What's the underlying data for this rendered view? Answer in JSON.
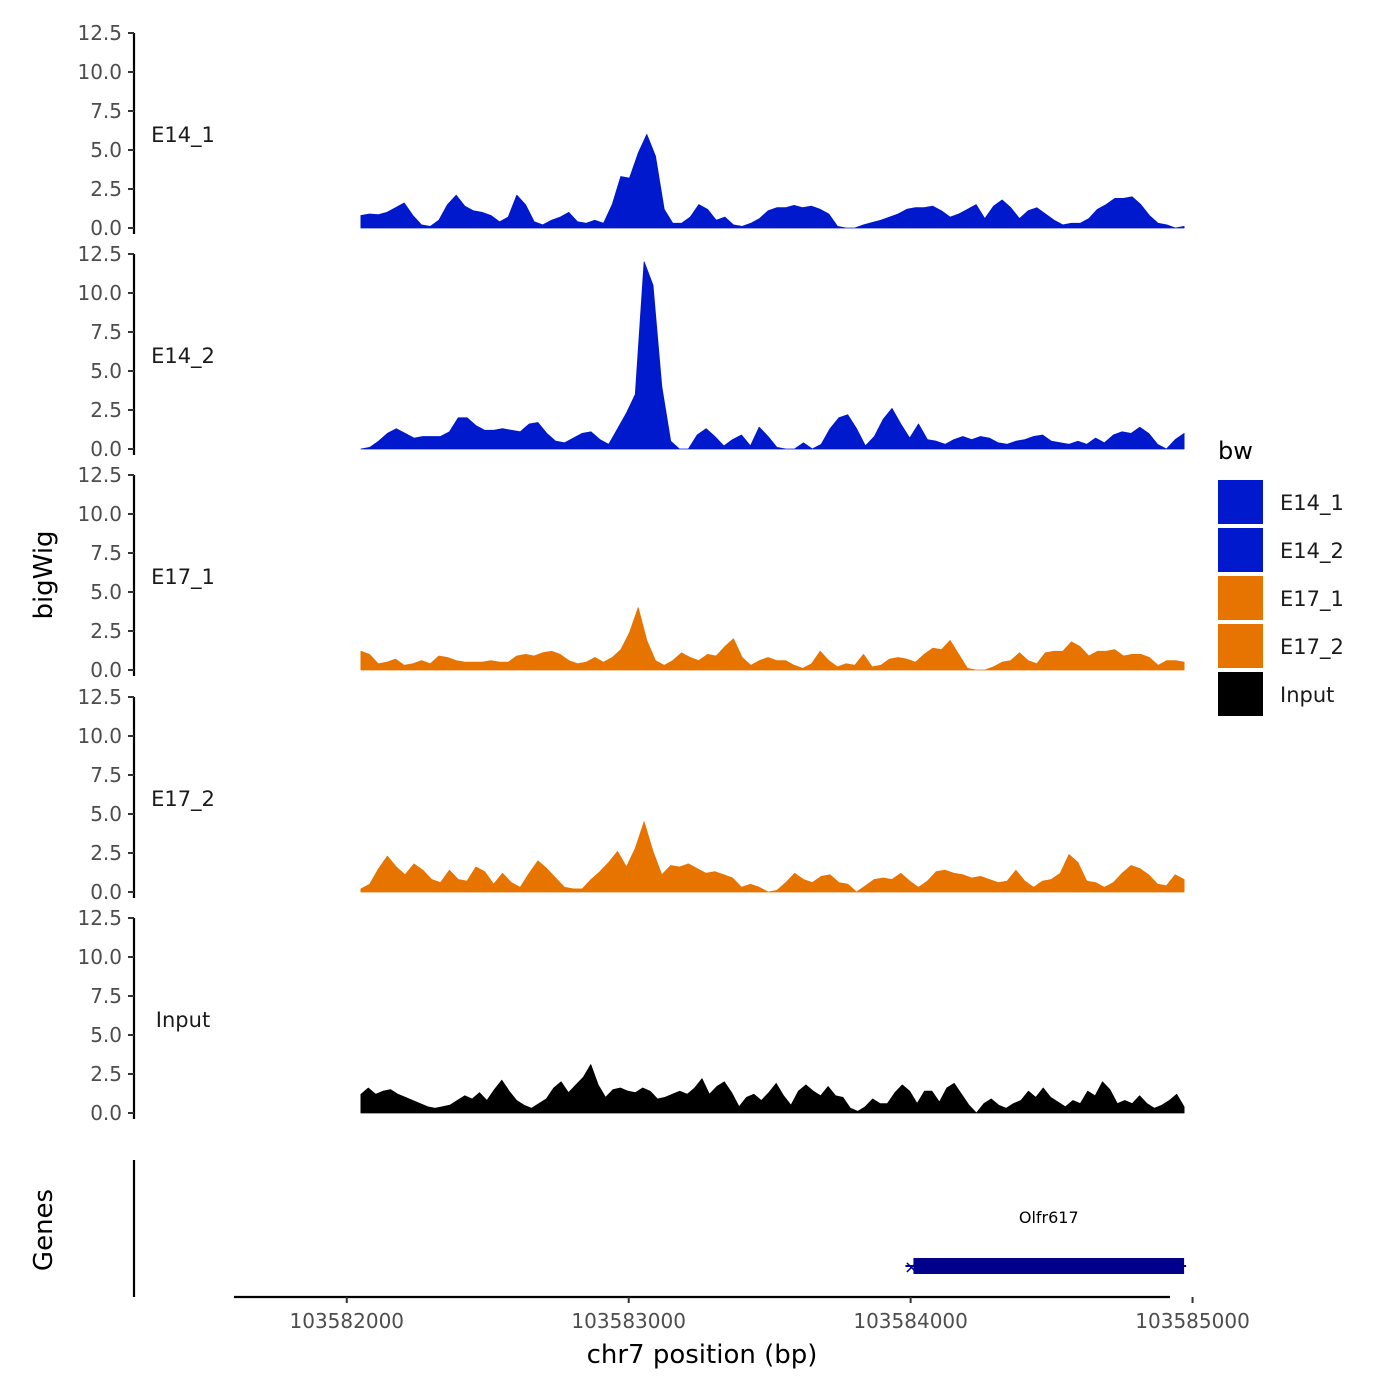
{
  "chart_data": {
    "type": "area",
    "ylabel": "bigWig",
    "xlabel": "chr7 position (bp)",
    "genes_label": "Genes",
    "x_range": [
      103582050,
      103584970
    ],
    "xlim": [
      103581600,
      103584920
    ],
    "x_ticks": [
      103582000,
      103583000,
      103584000,
      103585000
    ],
    "x_tick_labels": [
      "103582000",
      "103583000",
      "103584000",
      "103585000"
    ],
    "y_ticks": [
      0,
      2.5,
      5,
      7.5,
      10,
      12.5
    ],
    "y_tick_labels": [
      "0.0",
      "2.5",
      "5.0",
      "7.5",
      "10.0",
      "12.5"
    ],
    "ylim": [
      0,
      12.5
    ],
    "legend": {
      "title": "bw",
      "position": "right",
      "entries": [
        {
          "label": "E14_1",
          "color": "#0019cc"
        },
        {
          "label": "E14_2",
          "color": "#0019cc"
        },
        {
          "label": "E17_1",
          "color": "#e87400"
        },
        {
          "label": "E17_2",
          "color": "#e87400"
        },
        {
          "label": "Input",
          "color": "#000000"
        }
      ]
    },
    "series": [
      {
        "name": "E14_1",
        "color": "#0019cc",
        "values": [
          0.8,
          0.9,
          0.85,
          1.0,
          1.3,
          1.6,
          0.8,
          0.2,
          0.1,
          0.5,
          1.5,
          2.1,
          1.4,
          1.1,
          1.0,
          0.8,
          0.4,
          0.7,
          2.1,
          1.5,
          0.4,
          0.2,
          0.5,
          0.7,
          1.0,
          0.4,
          0.3,
          0.5,
          0.3,
          1.5,
          3.3,
          3.2,
          4.8,
          6.0,
          4.6,
          1.2,
          0.3,
          0.3,
          0.7,
          1.5,
          1.2,
          0.5,
          0.7,
          0.2,
          0.1,
          0.3,
          0.6,
          1.1,
          1.3,
          1.3,
          1.45,
          1.3,
          1.4,
          1.2,
          0.9,
          0.1,
          0.0,
          0.0,
          0.2,
          0.35,
          0.5,
          0.7,
          0.9,
          1.2,
          1.3,
          1.3,
          1.4,
          1.1,
          0.7,
          0.9,
          1.2,
          1.5,
          0.6,
          1.4,
          1.8,
          1.3,
          0.6,
          1.1,
          1.3,
          0.9,
          0.5,
          0.2,
          0.3,
          0.3,
          0.6,
          1.2,
          1.5,
          1.9,
          1.9,
          2.0,
          1.5,
          0.8,
          0.3,
          0.2,
          0.0,
          0.1
        ]
      },
      {
        "name": "E14_2",
        "color": "#0019cc",
        "values": [
          0.0,
          0.1,
          0.5,
          1.0,
          1.3,
          1.0,
          0.7,
          0.8,
          0.8,
          0.8,
          1.1,
          2.0,
          2.0,
          1.5,
          1.2,
          1.2,
          1.3,
          1.2,
          1.1,
          1.6,
          1.7,
          1.0,
          0.5,
          0.4,
          0.7,
          1.0,
          1.1,
          0.6,
          0.3,
          1.3,
          2.3,
          3.5,
          12.0,
          10.5,
          4.0,
          0.5,
          0.0,
          0.0,
          0.9,
          1.3,
          0.8,
          0.2,
          0.6,
          0.9,
          0.2,
          1.4,
          0.8,
          0.1,
          0.0,
          0.0,
          0.4,
          0.0,
          0.3,
          1.3,
          2.0,
          2.2,
          1.3,
          0.2,
          0.8,
          1.9,
          2.6,
          1.6,
          0.7,
          1.6,
          0.6,
          0.5,
          0.3,
          0.6,
          0.8,
          0.6,
          0.8,
          0.7,
          0.4,
          0.3,
          0.5,
          0.6,
          0.8,
          0.9,
          0.5,
          0.4,
          0.3,
          0.5,
          0.3,
          0.7,
          0.4,
          0.9,
          1.1,
          1.0,
          1.4,
          1.0,
          0.3,
          0.0,
          0.6,
          1.0
        ]
      },
      {
        "name": "E17_1",
        "color": "#e87400",
        "values": [
          1.2,
          1.0,
          0.4,
          0.5,
          0.7,
          0.3,
          0.4,
          0.6,
          0.4,
          0.9,
          0.8,
          0.6,
          0.5,
          0.5,
          0.5,
          0.6,
          0.5,
          0.5,
          0.9,
          1.0,
          0.9,
          1.1,
          1.2,
          1.0,
          0.6,
          0.4,
          0.5,
          0.8,
          0.5,
          0.8,
          1.3,
          2.4,
          4.0,
          1.9,
          0.6,
          0.3,
          0.6,
          1.1,
          0.8,
          0.6,
          1.0,
          0.9,
          1.5,
          2.0,
          0.8,
          0.3,
          0.6,
          0.8,
          0.6,
          0.6,
          0.3,
          0.1,
          0.4,
          1.2,
          0.6,
          0.2,
          0.4,
          0.3,
          1.0,
          0.2,
          0.3,
          0.7,
          0.8,
          0.7,
          0.5,
          1.0,
          1.4,
          1.3,
          1.9,
          1.0,
          0.1,
          0.0,
          0.0,
          0.2,
          0.5,
          0.6,
          1.1,
          0.6,
          0.4,
          1.1,
          1.2,
          1.2,
          1.8,
          1.5,
          0.9,
          1.2,
          1.2,
          1.3,
          0.9,
          1.0,
          1.0,
          0.8,
          0.3,
          0.6,
          0.6,
          0.5
        ]
      },
      {
        "name": "E17_2",
        "color": "#e87400",
        "values": [
          0.2,
          0.5,
          1.5,
          2.3,
          1.6,
          1.1,
          1.8,
          1.4,
          0.8,
          0.6,
          1.4,
          0.8,
          0.7,
          1.6,
          1.3,
          0.5,
          1.2,
          0.6,
          0.3,
          1.2,
          2.0,
          1.5,
          0.9,
          0.3,
          0.2,
          0.2,
          0.8,
          1.3,
          1.9,
          2.6,
          1.6,
          2.8,
          4.5,
          2.6,
          1.1,
          1.7,
          1.6,
          1.8,
          1.5,
          1.2,
          1.3,
          1.1,
          0.9,
          0.3,
          0.5,
          0.3,
          0.0,
          0.1,
          0.6,
          1.2,
          0.8,
          0.6,
          1.0,
          1.1,
          0.6,
          0.5,
          0.0,
          0.4,
          0.8,
          0.9,
          0.8,
          1.2,
          0.7,
          0.3,
          0.7,
          1.3,
          1.4,
          1.2,
          1.1,
          0.9,
          1.0,
          0.8,
          0.6,
          0.7,
          1.4,
          0.7,
          0.3,
          0.7,
          0.8,
          1.2,
          2.4,
          1.9,
          0.7,
          0.6,
          0.3,
          0.6,
          1.2,
          1.7,
          1.5,
          1.1,
          0.5,
          0.4,
          1.1,
          0.8
        ]
      },
      {
        "name": "Input",
        "color": "#000000",
        "values": [
          1.2,
          1.6,
          1.2,
          1.4,
          1.5,
          1.2,
          1.0,
          0.8,
          0.6,
          0.4,
          0.3,
          0.4,
          0.5,
          0.8,
          1.1,
          0.9,
          1.3,
          0.8,
          1.5,
          2.1,
          1.4,
          0.8,
          0.5,
          0.3,
          0.6,
          0.9,
          1.6,
          2.0,
          1.3,
          1.8,
          2.3,
          3.1,
          1.8,
          1.0,
          1.5,
          1.6,
          1.4,
          1.3,
          1.6,
          1.4,
          0.9,
          1.0,
          1.2,
          1.4,
          1.2,
          1.6,
          2.2,
          1.2,
          1.7,
          2.0,
          1.3,
          0.4,
          1.0,
          1.2,
          0.8,
          1.3,
          1.9,
          1.1,
          0.5,
          1.4,
          1.8,
          1.4,
          1.1,
          1.7,
          1.1,
          1.0,
          0.3,
          0.1,
          0.4,
          0.9,
          0.6,
          0.6,
          1.3,
          1.8,
          1.4,
          0.6,
          1.4,
          1.4,
          0.7,
          1.6,
          1.9,
          1.2,
          0.5,
          0.0,
          0.6,
          0.9,
          0.5,
          0.3,
          0.6,
          0.8,
          1.4,
          1.0,
          1.6,
          1.0,
          0.7,
          0.4,
          0.8,
          0.6,
          1.4,
          1.1,
          2.0,
          1.5,
          0.6,
          0.8,
          0.6,
          1.1,
          0.6,
          0.3,
          0.5,
          0.8,
          1.2,
          0.4
        ]
      }
    ],
    "gene": {
      "name": "Olfr617",
      "start": 103584010,
      "end": 103584970,
      "strand_symbol": "×",
      "color": "#00008b"
    }
  }
}
